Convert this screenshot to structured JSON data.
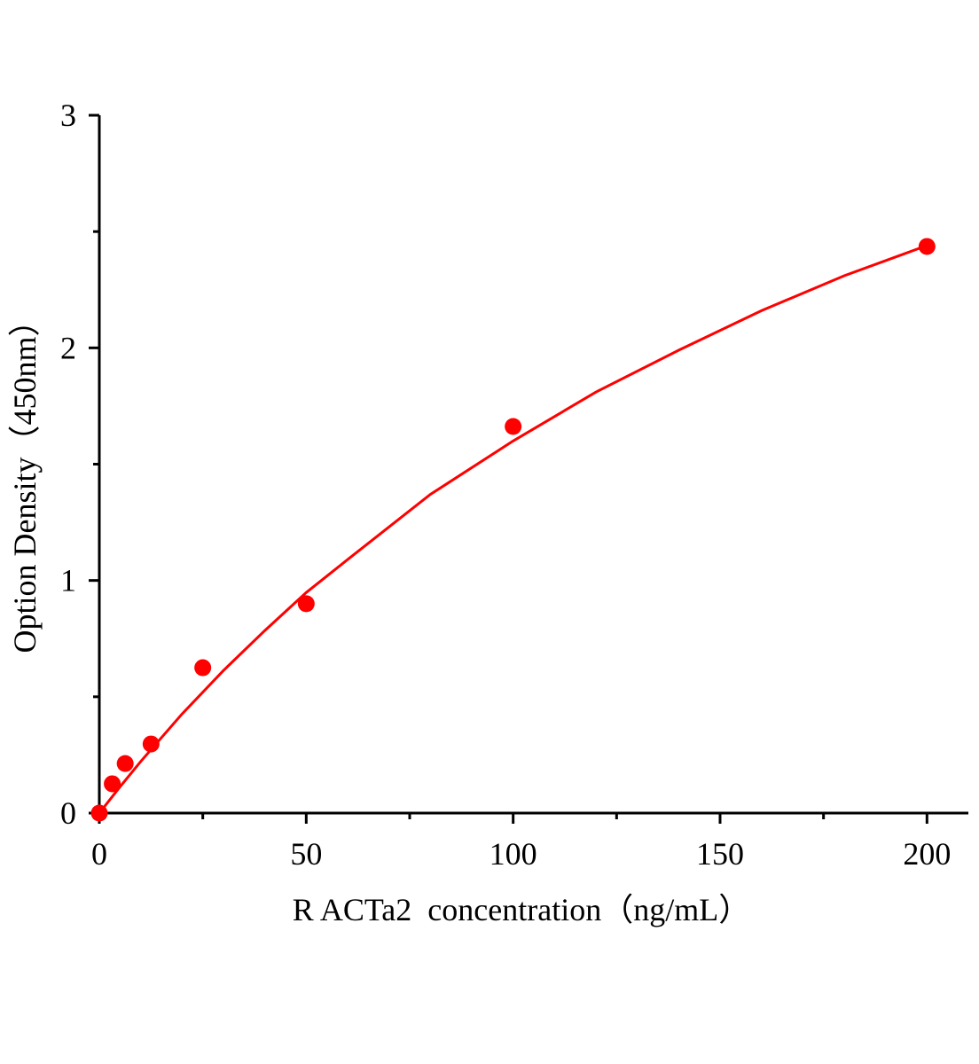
{
  "chart_data": {
    "type": "scatter",
    "title": "",
    "xlabel": "R ACTa2  concentration（ng/mL）",
    "ylabel": "Option Density（450nm）",
    "xlim": [
      0,
      210
    ],
    "ylim": [
      0,
      3
    ],
    "x_ticks": [
      0,
      50,
      100,
      150,
      200
    ],
    "y_ticks": [
      0,
      1,
      2,
      3
    ],
    "x_tick_labels": [
      "0",
      "50",
      "100",
      "150",
      "200"
    ],
    "y_tick_labels": [
      "0",
      "1",
      "2",
      "3"
    ],
    "grid": false,
    "legend": "none",
    "colors": {
      "points": "#ff0000",
      "curve": "#ff0000",
      "axis": "#000000"
    },
    "series": [
      {
        "x": [
          0,
          3.125,
          6.25,
          12.5,
          25,
          50,
          100,
          200
        ],
        "y": [
          0.0,
          0.126,
          0.213,
          0.297,
          0.625,
          0.9,
          1.662,
          2.436
        ]
      }
    ],
    "fit_curve": {
      "x": [
        0,
        5,
        10,
        20,
        30,
        40,
        50,
        60,
        80,
        100,
        120,
        140,
        160,
        180,
        200
      ],
      "y": [
        0,
        0.113,
        0.222,
        0.426,
        0.613,
        0.785,
        0.948,
        1.09,
        1.37,
        1.6,
        1.81,
        1.99,
        2.16,
        2.31,
        2.44
      ]
    }
  }
}
